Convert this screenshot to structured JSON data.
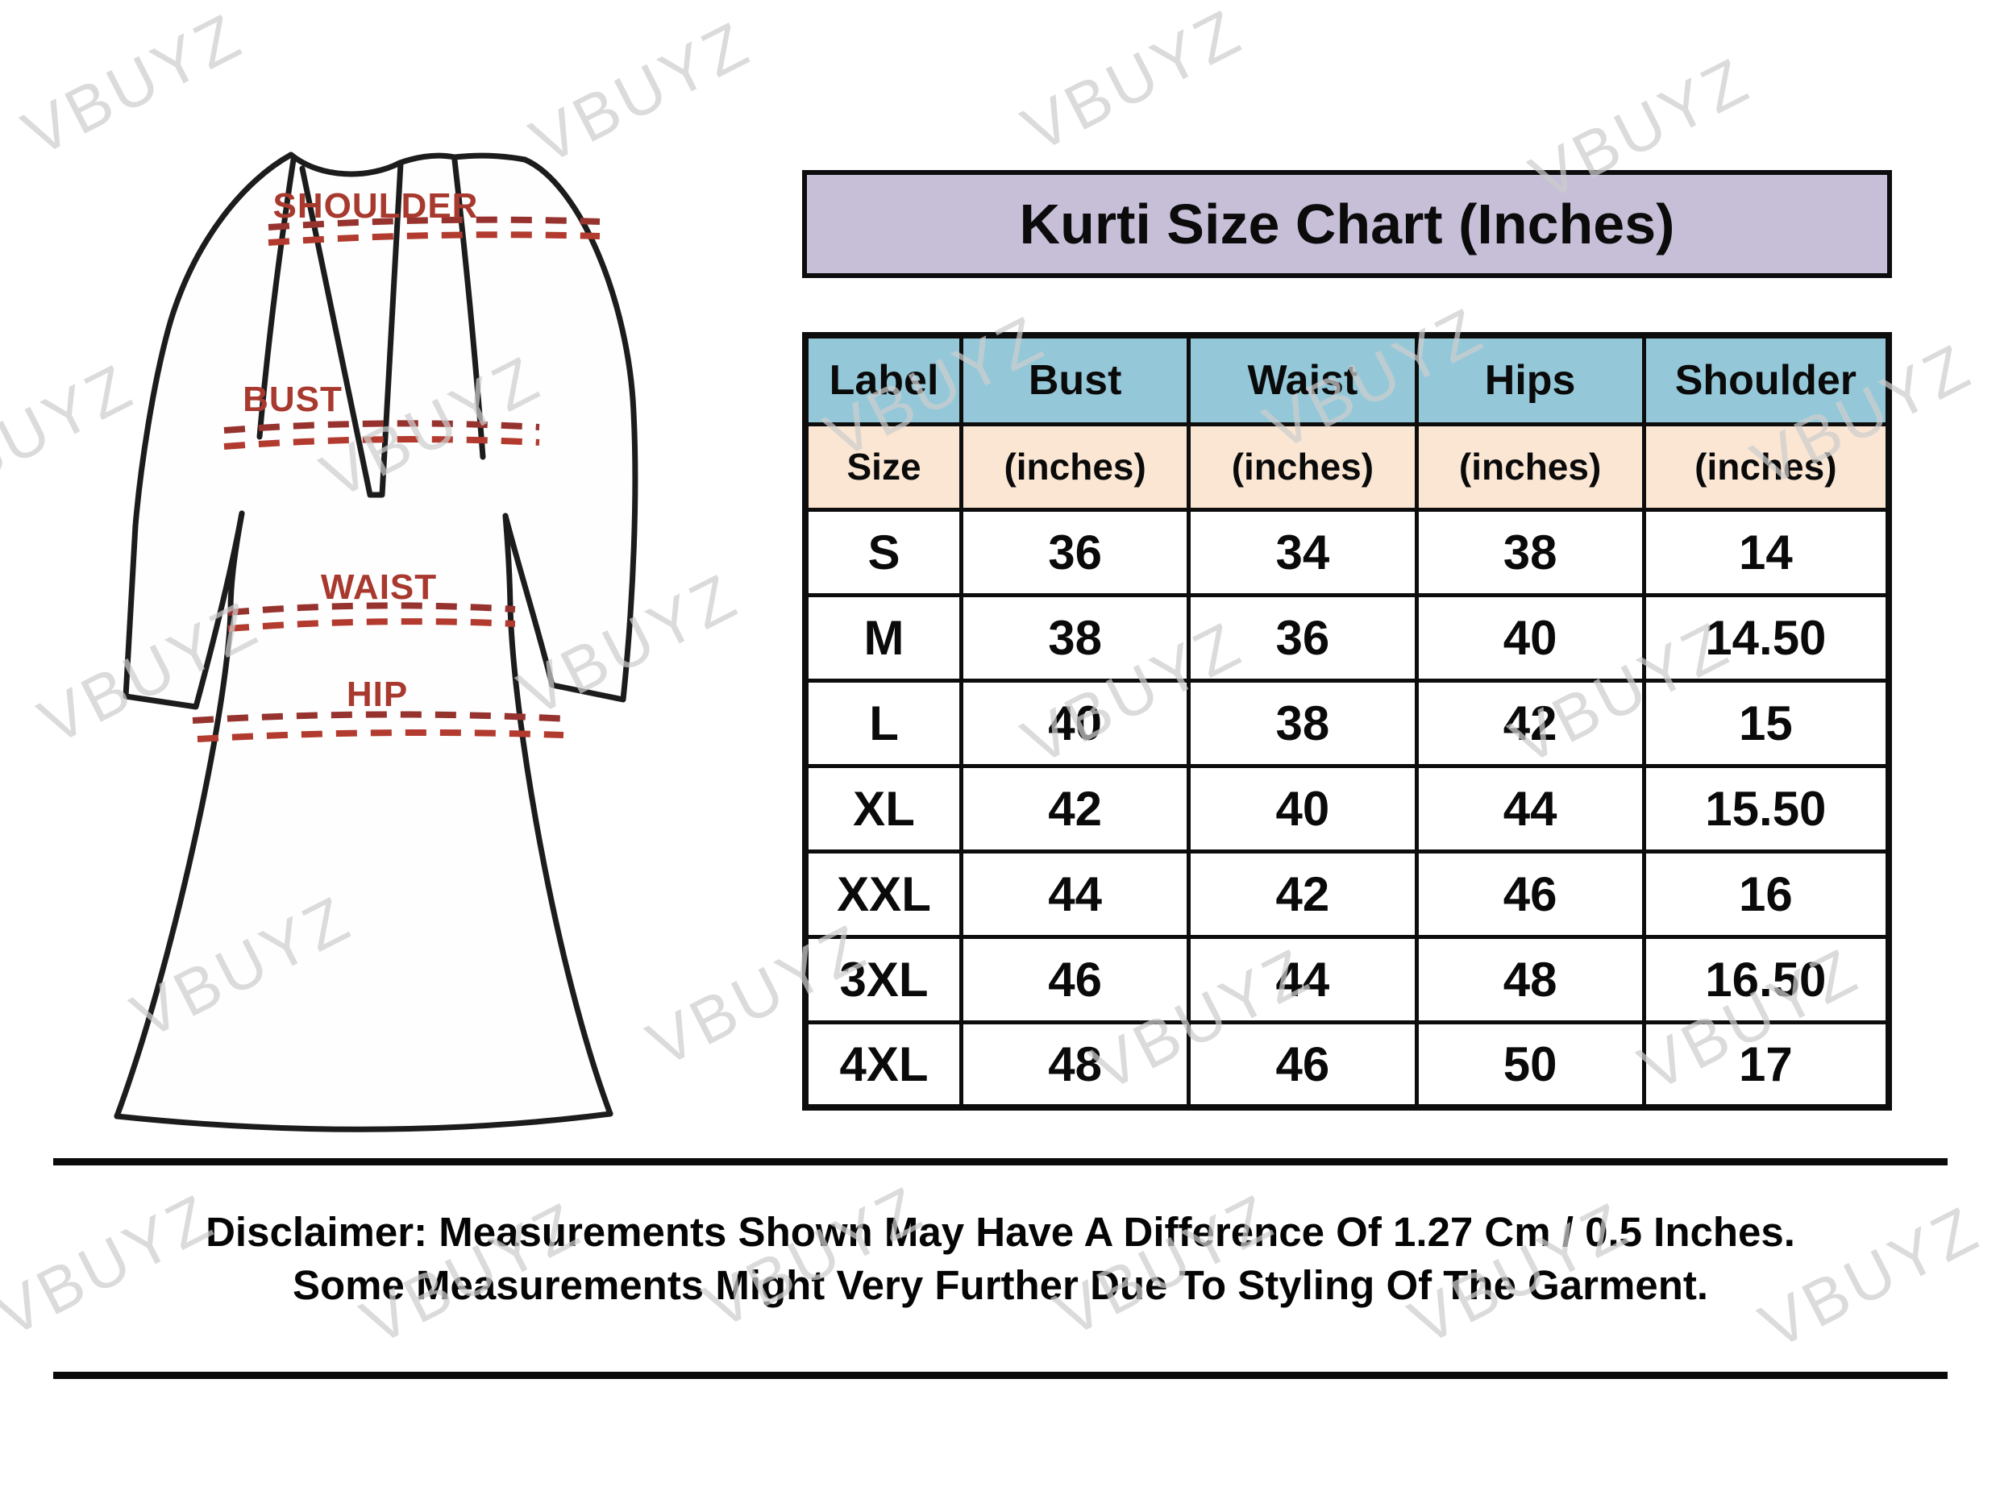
{
  "title": "Kurti Size Chart (Inches)",
  "watermark": {
    "text": "VBUYZ"
  },
  "diagram": {
    "shoulder_label": "SHOULDER",
    "bust_label": "BUST",
    "waist_label": "WAIST",
    "hip_label": "HIP"
  },
  "table": {
    "columns": [
      "Label",
      "Bust",
      "Waist",
      "Hips",
      "Shoulder"
    ],
    "subheaders": [
      "Size",
      "(inches)",
      "(inches)",
      "(inches)",
      "(inches)"
    ],
    "rows": [
      [
        "S",
        "36",
        "34",
        "38",
        "14"
      ],
      [
        "M",
        "38",
        "36",
        "40",
        "14.50"
      ],
      [
        "L",
        "40",
        "38",
        "42",
        "15"
      ],
      [
        "XL",
        "42",
        "40",
        "44",
        "15.50"
      ],
      [
        "XXL",
        "44",
        "42",
        "46",
        "16"
      ],
      [
        "3XL",
        "46",
        "44",
        "48",
        "16.50"
      ],
      [
        "4XL",
        "48",
        "46",
        "50",
        "17"
      ]
    ]
  },
  "disclaimer": {
    "line1": "Disclaimer: Measurements Shown May Have A Difference Of 1.27 Cm / 0.5 Inches.",
    "line2": "Some Measurements Might Very Further Due To Styling Of The Garment."
  },
  "colors": {
    "title_bg": "#c7bfd8",
    "header_bg": "#94c8d9",
    "subheader_bg": "#fae6d3",
    "accent_red": "#a8392e",
    "border": "#0d0d0d"
  },
  "chart_data": {
    "type": "table",
    "title": "Kurti Size Chart (Inches)",
    "columns": [
      "Label Size",
      "Bust (inches)",
      "Waist (inches)",
      "Hips (inches)",
      "Shoulder (inches)"
    ],
    "rows": [
      [
        "S",
        36,
        34,
        38,
        14
      ],
      [
        "M",
        38,
        36,
        40,
        14.5
      ],
      [
        "L",
        40,
        38,
        42,
        15
      ],
      [
        "XL",
        42,
        40,
        44,
        15.5
      ],
      [
        "XXL",
        44,
        42,
        46,
        16
      ],
      [
        "3XL",
        46,
        44,
        48,
        16.5
      ],
      [
        "4XL",
        48,
        46,
        50,
        17
      ]
    ],
    "notes": [
      "Disclaimer: Measurements Shown May Have A Difference Of 1.27 Cm / 0.5 Inches.",
      "Some Measurements Might Very Further Due To Styling Of The Garment."
    ]
  }
}
